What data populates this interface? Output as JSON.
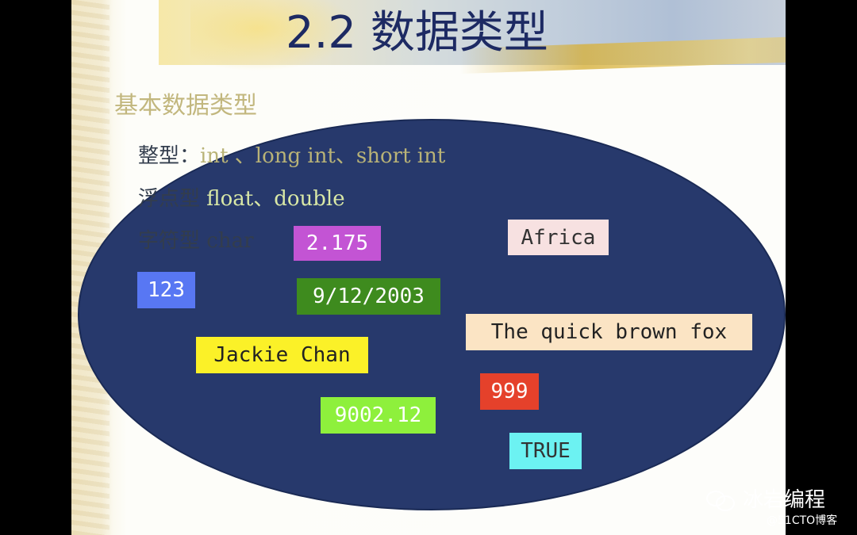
{
  "slide": {
    "title": "2.2 数据类型",
    "subtitle": "基本数据类型",
    "lines": {
      "integer_label": "整型：",
      "integer_types": "int 、long int、short int",
      "float_label": "浮点型 ",
      "float_types": "float、double",
      "char_label": "字符型 char"
    },
    "tags": [
      {
        "text": "2.175",
        "bg": "#c354d4",
        "fg": "#ffffff"
      },
      {
        "text": "Africa",
        "bg": "#f7e1e1",
        "fg": "#333333"
      },
      {
        "text": "123",
        "bg": "#5877f3",
        "fg": "#ffffff"
      },
      {
        "text": "9/12/2003",
        "bg": "#3e8b1e",
        "fg": "#ffffff"
      },
      {
        "text": "The quick brown fox",
        "bg": "#fbe4c4",
        "fg": "#222222"
      },
      {
        "text": "Jackie Chan",
        "bg": "#fbf128",
        "fg": "#222222"
      },
      {
        "text": "999",
        "bg": "#e5412b",
        "fg": "#ffffff"
      },
      {
        "text": "9002.12",
        "bg": "#8ef03c",
        "fg": "#ffffff"
      },
      {
        "text": "TRUE",
        "bg": "#6cf2f2",
        "fg": "#333333"
      }
    ]
  },
  "watermark": {
    "brand": "冰岩编程",
    "source": "@51CTO博客",
    "icon": "wechat-icon"
  }
}
